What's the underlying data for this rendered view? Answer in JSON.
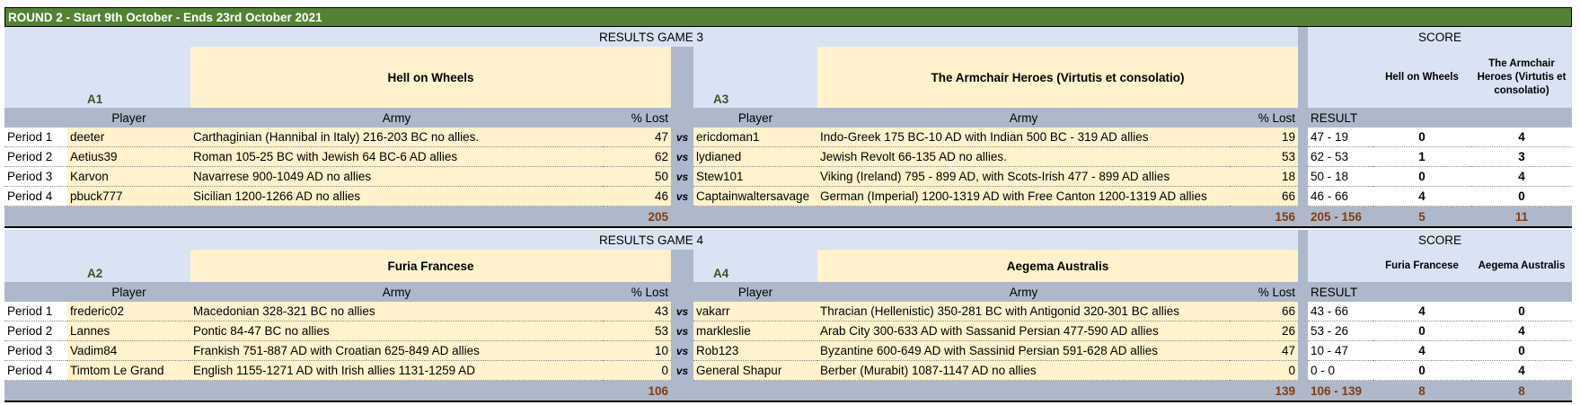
{
  "header": {
    "title": "ROUND 2  - Start 9th October - Ends 23rd October 2021"
  },
  "games": [
    {
      "heading": "RESULTS GAME 3",
      "score_heading": "SCORE",
      "team_a": {
        "code": "A1",
        "name": "Hell on Wheels"
      },
      "team_b": {
        "code": "A3",
        "name": "The Armchair Heroes (Virtutis et consolatio)"
      },
      "columns": {
        "player_a": "Player",
        "army_a": "Army",
        "lost_a": "% Lost",
        "player_b": "Player",
        "army_b": "Army",
        "lost_b": "% Lost",
        "result": "RESULT"
      },
      "score_teams": [
        "Hell on Wheels",
        "The Armchair Heroes (Virtutis et consolatio)"
      ],
      "rows": [
        {
          "period": "Period 1",
          "player_a": "deeter",
          "army_a": "Carthaginian (Hannibal in Italy) 216-203 BC no allies.",
          "lost_a": 47,
          "vs": "vs",
          "player_b": "ericdoman1",
          "army_b": "Indo-Greek 175 BC-10 AD with Indian 500 BC - 319 AD allies",
          "lost_b": 19,
          "result": "47 - 19",
          "score_a": 0,
          "score_b": 4
        },
        {
          "period": "Period 2",
          "player_a": "Aetius39",
          "army_a": "Roman 105-25 BC with Jewish 64 BC-6 AD allies",
          "lost_a": 62,
          "vs": "vs",
          "player_b": "lydianed",
          "army_b": "Jewish Revolt 66-135 AD no allies.",
          "lost_b": 53,
          "result": "62 - 53",
          "score_a": 1,
          "score_b": 3
        },
        {
          "period": "Period 3",
          "player_a": "Karvon",
          "army_a": "Navarrese 900-1049 AD no allies",
          "lost_a": 50,
          "vs": "vs",
          "player_b": "Stew101",
          "army_b": "Viking (Ireland) 795 - 899 AD, with Scots-Irish 477 - 899 AD allies",
          "lost_b": 18,
          "result": "50 - 18",
          "score_a": 0,
          "score_b": 4
        },
        {
          "period": "Period 4",
          "player_a": "pbuck777",
          "army_a": "Sicilian 1200-1266 AD no allies",
          "lost_a": 46,
          "vs": "vs",
          "player_b": "Captainwaltersavage",
          "army_b": "German (Imperial) 1200-1319 AD with Free Canton 1200-1319 AD allies",
          "lost_b": 66,
          "result": "46 - 66",
          "score_a": 4,
          "score_b": 0
        }
      ],
      "totals": {
        "lost_a": 205,
        "lost_b": 156,
        "result": "205 - 156",
        "score_a": 5,
        "score_b": 11
      }
    },
    {
      "heading": "RESULTS GAME 4",
      "score_heading": "SCORE",
      "team_a": {
        "code": "A2",
        "name": "Furia Francese"
      },
      "team_b": {
        "code": "A4",
        "name": "Aegema Australis"
      },
      "columns": {
        "player_a": "Player",
        "army_a": "Army",
        "lost_a": "% Lost",
        "player_b": "Player",
        "army_b": "Army",
        "lost_b": "% Lost",
        "result": "RESULT"
      },
      "score_teams": [
        "Furia Francese",
        "Aegema Australis"
      ],
      "rows": [
        {
          "period": "Period 1",
          "player_a": "frederic02",
          "army_a": "Macedonian 328-321 BC no allies",
          "lost_a": 43,
          "vs": "vs",
          "player_b": "vakarr",
          "army_b": "Thracian (Hellenistic) 350-281 BC with Antigonid 320-301 BC allies",
          "lost_b": 66,
          "result": "43 - 66",
          "score_a": 4,
          "score_b": 0
        },
        {
          "period": "Period 2",
          "player_a": "Lannes",
          "army_a": "Pontic 84-47 BC no allies",
          "lost_a": 53,
          "vs": "vs",
          "player_b": "markleslie",
          "army_b": "Arab City 300-633 AD with Sassanid Persian 477-590 AD allies",
          "lost_b": 26,
          "result": "53 - 26",
          "score_a": 0,
          "score_b": 4
        },
        {
          "period": "Period 3",
          "player_a": "Vadim84",
          "army_a": "Frankish 751-887 AD with Croatian 625-849 AD allies",
          "lost_a": 10,
          "vs": "vs",
          "player_b": "Rob123",
          "army_b": "Byzantine 600-649 AD with Sassinid Persian 591-628 AD allies",
          "lost_b": 47,
          "result": "10 - 47",
          "score_a": 4,
          "score_b": 0
        },
        {
          "period": "Period 4",
          "player_a": "Timtom Le Grand",
          "army_a": "English 1155-1271 AD with Irish allies 1131-1259 AD",
          "lost_a": 0,
          "vs": "vs",
          "player_b": "General Shapur",
          "army_b": "Berber (Murabit) 1087-1147 AD no allies",
          "lost_b": 0,
          "result": "0 - 0",
          "score_a": 0,
          "score_b": 4
        }
      ],
      "totals": {
        "lost_a": 106,
        "lost_b": 139,
        "result": "106 - 139",
        "score_a": 8,
        "score_b": 8
      }
    }
  ]
}
